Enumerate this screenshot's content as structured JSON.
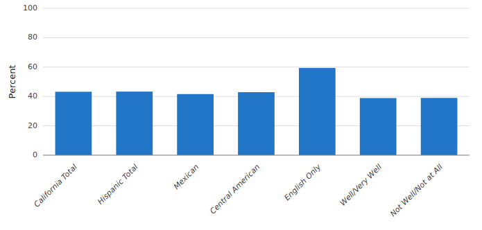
{
  "chart_data": {
    "type": "bar",
    "ylabel": "Percent",
    "categories": [
      "California Total",
      "Hispanic Total",
      "Mexican",
      "Central American",
      "English Only",
      "Well/Very Well",
      "Not Well/Not at All"
    ],
    "values": [
      43.2,
      43.3,
      41.6,
      42.9,
      59.4,
      38.9,
      39.0
    ],
    "color": "#2176C7",
    "ylim": [
      0,
      100
    ],
    "yticks": [
      0,
      20,
      40,
      60,
      80,
      100
    ],
    "grid": true
  }
}
